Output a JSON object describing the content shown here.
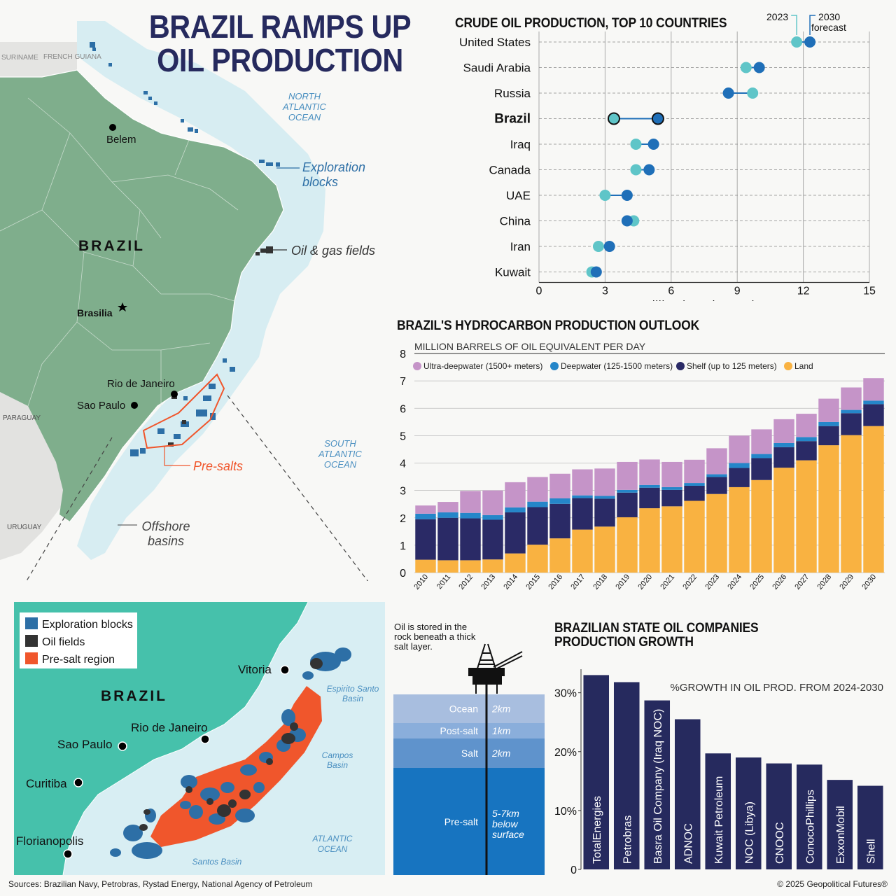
{
  "title": "BRAZIL RAMPS UP OIL PRODUCTION",
  "colors": {
    "navy": "#262a5e",
    "teal": "#5fc5c8",
    "blue": "#1f6fb8",
    "purple": "#c594c8",
    "deep": "#2586c9",
    "shelf": "#2a2a66",
    "land": "#f9b241",
    "orange": "#f0562c",
    "sea": "#d8eef3",
    "landgreen": "#7fae8c"
  },
  "map": {
    "labels": {
      "suriname": "SURINAME",
      "french_guiana": "FRENCH GUIANA",
      "belem": "Belem",
      "brazil": "BRAZIL",
      "brasilia": "Brasilia",
      "rio": "Rio de Janeiro",
      "saopaulo": "Sao Paulo",
      "paraguay": "PARAGUAY",
      "uruguay": "URUGUAY",
      "north_atlantic": "NORTH ATLANTIC OCEAN",
      "south_atlantic": "SOUTH ATLANTIC OCEAN",
      "exploration": "Exploration blocks",
      "oilgas": "Oil & gas fields",
      "presalts": "Pre-salts",
      "offshore": "Offshore basins"
    },
    "icons": [
      "city-dot",
      "capital-star"
    ]
  },
  "inset": {
    "legend": [
      "Exploration blocks",
      "Oil fields",
      "Pre-salt region"
    ],
    "labels": {
      "brazil": "BRAZIL",
      "vitoria": "Vitoria",
      "rio": "Rio de Janeiro",
      "saopaulo": "Sao Paulo",
      "curitiba": "Curitiba",
      "florianopolis": "Florianopolis",
      "espirito": "Espirito Santo Basin",
      "campos": "Campos Basin",
      "santos": "Santos Basin",
      "atlantic": "ATLANTIC OCEAN"
    }
  },
  "strata": {
    "caption": "Oil is stored in the rock beneath a thick salt layer.",
    "layers": [
      {
        "name": "Ocean",
        "depth": "2km",
        "color": "#a8bedf"
      },
      {
        "name": "Post-salt",
        "depth": "1km",
        "color": "#8aaedb"
      },
      {
        "name": "Salt",
        "depth": "2km",
        "color": "#5f93cc"
      },
      {
        "name": "Pre-salt",
        "depth": "5-7km below surface",
        "color": "#1774c0"
      }
    ],
    "icon": "oil-rig-icon"
  },
  "chart_data": [
    {
      "type": "scatter",
      "title": "CRUDE OIL PRODUCTION, TOP 10 COUNTRIES",
      "xlabel": "million barrels per day",
      "xlim": [
        0,
        15
      ],
      "xticks": [
        0,
        3,
        6,
        9,
        12,
        15
      ],
      "categories": [
        "United States",
        "Saudi Arabia",
        "Russia",
        "Brazil",
        "Iraq",
        "Canada",
        "UAE",
        "China",
        "Iran",
        "Kuwait"
      ],
      "series": [
        {
          "name": "2023",
          "values": [
            11.7,
            9.4,
            9.7,
            3.4,
            4.4,
            4.4,
            3.0,
            4.3,
            2.7,
            2.4
          ]
        },
        {
          "name": "2030 forecast",
          "values": [
            12.3,
            10.0,
            8.6,
            5.4,
            5.2,
            5.0,
            4.0,
            4.0,
            3.2,
            2.6
          ]
        }
      ],
      "grid": true
    },
    {
      "type": "bar",
      "stacked": true,
      "title": "BRAZIL'S HYDROCARBON PRODUCTION OUTLOOK",
      "ylabel": "MILLION BARRELS OF OIL EQUIVALENT PER DAY",
      "ylim": [
        0,
        8
      ],
      "yticks": [
        0,
        1,
        2,
        3,
        4,
        5,
        6,
        7,
        8
      ],
      "categories": [
        "2010",
        "2011",
        "2012",
        "2013",
        "2014",
        "2015",
        "2016",
        "2017",
        "2018",
        "2019",
        "2020",
        "2021",
        "2022",
        "2023",
        "2024",
        "2025",
        "2026",
        "2027",
        "2028",
        "2029",
        "2030"
      ],
      "series": [
        {
          "name": "Land",
          "values": [
            0.47,
            0.45,
            0.45,
            0.48,
            0.7,
            1.02,
            1.25,
            1.57,
            1.68,
            2.02,
            2.35,
            2.42,
            2.62,
            2.87,
            3.12,
            3.38,
            3.83,
            4.1,
            4.65,
            5.02,
            5.35
          ]
        },
        {
          "name": "Shelf (up to 125  meters)",
          "values": [
            1.48,
            1.55,
            1.53,
            1.45,
            1.5,
            1.37,
            1.26,
            1.15,
            1.02,
            0.9,
            0.75,
            0.6,
            0.55,
            0.62,
            0.7,
            0.8,
            0.75,
            0.7,
            0.7,
            0.8,
            0.8
          ]
        },
        {
          "name": "Deepwater (125-1500 meters)",
          "values": [
            0.2,
            0.2,
            0.2,
            0.17,
            0.18,
            0.2,
            0.2,
            0.1,
            0.1,
            0.1,
            0.1,
            0.1,
            0.1,
            0.1,
            0.18,
            0.15,
            0.15,
            0.15,
            0.15,
            0.12,
            0.13
          ]
        },
        {
          "name": "Ultra-deepwater (1500+ meters)",
          "values": [
            0.3,
            0.38,
            0.8,
            0.9,
            0.92,
            0.9,
            0.9,
            0.95,
            1.0,
            1.02,
            0.93,
            0.92,
            0.85,
            0.95,
            1.0,
            0.9,
            0.87,
            0.85,
            0.85,
            0.82,
            0.82
          ]
        }
      ],
      "legend": "top-left",
      "grid": true
    },
    {
      "type": "bar",
      "title": "BRAZILIAN STATE OIL COMPANIES PRODUCTION GROWTH",
      "ylabel": "%GROWTH IN OIL PROD. FROM 2024-2030",
      "ylim": [
        0,
        30
      ],
      "yticks": [
        "0",
        "10%",
        "20%",
        "30%"
      ],
      "yticks_values": [
        0,
        10,
        20,
        30
      ],
      "categories": [
        "TotalEnergies",
        "Petrobras",
        "Basra Oil Company (Iraq NOC)",
        "ADNOC",
        "Kuwait Petroleum",
        "NOC (Libya)",
        "CNOOC",
        "ConocoPhillips",
        "ExxonMobil",
        "Shell"
      ],
      "values": [
        33.0,
        31.8,
        28.7,
        25.5,
        19.7,
        19.0,
        18.0,
        17.8,
        15.2,
        14.2
      ]
    }
  ],
  "footer": {
    "sources": "Sources: Brazilian Navy, Petrobras, Rystad Energy, National Agency of Petroleum",
    "copyright": "© 2025 Geopolitical Futures®"
  }
}
